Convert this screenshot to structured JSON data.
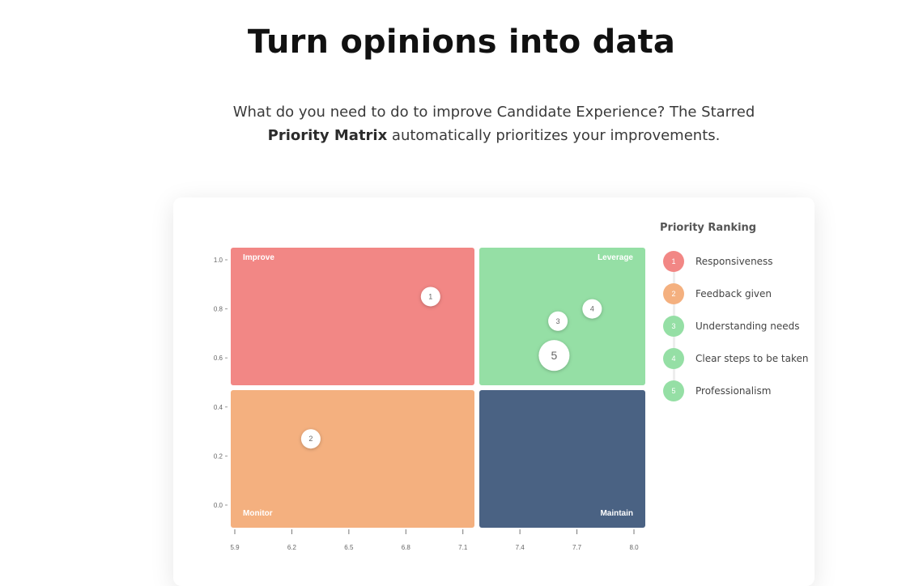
{
  "header": {
    "title": "Turn opinions into data",
    "subtitle_part1": "What do you need to do to improve Candidate Experience? The Starred ",
    "subtitle_bold": "Priority Matrix",
    "subtitle_part2": " automatically prioritizes your improvements."
  },
  "chart_data": {
    "type": "scatter",
    "quadrants": [
      {
        "name": "Improve",
        "color": "#f28785"
      },
      {
        "name": "Leverage",
        "color": "#95dfa5"
      },
      {
        "name": "Monitor",
        "color": "#f4b07f"
      },
      {
        "name": "Maintain",
        "color": "#4a6283"
      }
    ],
    "xlim": [
      5.9,
      8.0
    ],
    "ylim": [
      0.0,
      1.0
    ],
    "x_ticks": [
      "5.9",
      "6.2",
      "6.5",
      "6.8",
      "7.1",
      "7.4",
      "7.7",
      "8.0"
    ],
    "y_ticks": [
      "1.0",
      "0.8",
      "0.6",
      "0.4",
      "0.2",
      "0.0"
    ],
    "points": [
      {
        "label": "1",
        "x": 6.93,
        "y": 0.85,
        "size": "small"
      },
      {
        "label": "2",
        "x": 6.3,
        "y": 0.27,
        "size": "small"
      },
      {
        "label": "3",
        "x": 7.6,
        "y": 0.75,
        "size": "small"
      },
      {
        "label": "4",
        "x": 7.78,
        "y": 0.8,
        "size": "small"
      },
      {
        "label": "5",
        "x": 7.58,
        "y": 0.61,
        "size": "large"
      }
    ]
  },
  "legend": {
    "title": "Priority Ranking",
    "items": [
      {
        "rank": "1",
        "label": "Responsiveness",
        "color": "#f28785"
      },
      {
        "rank": "2",
        "label": "Feedback given",
        "color": "#f4b07f"
      },
      {
        "rank": "3",
        "label": "Understanding needs",
        "color": "#95dfa5"
      },
      {
        "rank": "4",
        "label": "Clear steps to be taken",
        "color": "#95dfa5"
      },
      {
        "rank": "5",
        "label": "Professionalism",
        "color": "#95dfa5"
      }
    ]
  }
}
